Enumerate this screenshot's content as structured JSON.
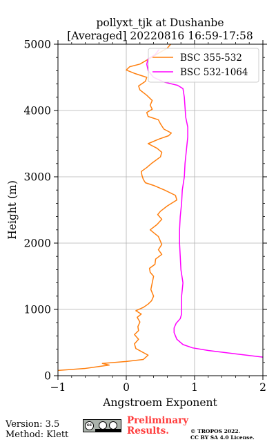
{
  "chart_data": {
    "type": "line",
    "title": [
      "pollyxt_tjk at Dushanbe",
      "[Averaged] 20220816 16:59-17:58"
    ],
    "xlabel": "Angstroem Exponent",
    "ylabel": "Height (m)",
    "xlim": [
      -1,
      2
    ],
    "ylim": [
      0,
      5000
    ],
    "xticks": [
      -1,
      0,
      1,
      2
    ],
    "xtick_labels": [
      "−1",
      "0",
      "1",
      "2"
    ],
    "yticks": [
      0,
      1000,
      2000,
      3000,
      4000,
      5000
    ],
    "ytick_labels": [
      "0",
      "1000",
      "2000",
      "3000",
      "4000",
      "5000"
    ],
    "grid": true,
    "legend_position": "top-right",
    "series": [
      {
        "name": "BSC 355-532",
        "color": "#ff7f0e",
        "points": [
          [
            -1.0,
            80
          ],
          [
            -0.6,
            110
          ],
          [
            -0.25,
            160
          ],
          [
            -0.35,
            185
          ],
          [
            0.0,
            215
          ],
          [
            0.25,
            245
          ],
          [
            0.32,
            310
          ],
          [
            0.22,
            365
          ],
          [
            0.14,
            410
          ],
          [
            0.12,
            480
          ],
          [
            0.18,
            550
          ],
          [
            0.12,
            620
          ],
          [
            0.18,
            680
          ],
          [
            0.17,
            740
          ],
          [
            0.2,
            810
          ],
          [
            0.16,
            880
          ],
          [
            0.22,
            930
          ],
          [
            0.14,
            980
          ],
          [
            0.25,
            1030
          ],
          [
            0.32,
            1080
          ],
          [
            0.37,
            1130
          ],
          [
            0.4,
            1200
          ],
          [
            0.36,
            1300
          ],
          [
            0.38,
            1400
          ],
          [
            0.4,
            1500
          ],
          [
            0.35,
            1560
          ],
          [
            0.34,
            1620
          ],
          [
            0.42,
            1680
          ],
          [
            0.43,
            1760
          ],
          [
            0.52,
            1830
          ],
          [
            0.47,
            1900
          ],
          [
            0.52,
            1980
          ],
          [
            0.47,
            2100
          ],
          [
            0.35,
            2200
          ],
          [
            0.45,
            2280
          ],
          [
            0.52,
            2360
          ],
          [
            0.46,
            2430
          ],
          [
            0.5,
            2480
          ],
          [
            0.6,
            2560
          ],
          [
            0.74,
            2650
          ],
          [
            0.72,
            2720
          ],
          [
            0.56,
            2800
          ],
          [
            0.4,
            2870
          ],
          [
            0.28,
            2910
          ],
          [
            0.25,
            2960
          ],
          [
            0.23,
            3020
          ],
          [
            0.22,
            3080
          ],
          [
            0.3,
            3140
          ],
          [
            0.38,
            3210
          ],
          [
            0.5,
            3300
          ],
          [
            0.52,
            3370
          ],
          [
            0.45,
            3430
          ],
          [
            0.32,
            3500
          ],
          [
            0.48,
            3570
          ],
          [
            0.62,
            3620
          ],
          [
            0.66,
            3660
          ],
          [
            0.55,
            3720
          ],
          [
            0.5,
            3800
          ],
          [
            0.47,
            3860
          ],
          [
            0.32,
            3910
          ],
          [
            0.3,
            3970
          ],
          [
            0.38,
            4020
          ],
          [
            0.35,
            4080
          ],
          [
            0.38,
            4150
          ],
          [
            0.3,
            4230
          ],
          [
            0.2,
            4310
          ],
          [
            0.18,
            4370
          ],
          [
            0.28,
            4440
          ],
          [
            0.3,
            4500
          ],
          [
            0.12,
            4560
          ],
          [
            0.0,
            4610
          ],
          [
            0.05,
            4660
          ],
          [
            0.2,
            4700
          ],
          [
            0.3,
            4760
          ],
          [
            0.4,
            4820
          ],
          [
            0.5,
            4880
          ],
          [
            0.6,
            4940
          ],
          [
            0.65,
            5000
          ]
        ]
      },
      {
        "name": "BSC 532-1064",
        "color": "#ff00ff",
        "points": [
          [
            2.0,
            280
          ],
          [
            1.6,
            330
          ],
          [
            1.2,
            380
          ],
          [
            0.97,
            420
          ],
          [
            0.83,
            470
          ],
          [
            0.74,
            550
          ],
          [
            0.7,
            650
          ],
          [
            0.7,
            720
          ],
          [
            0.73,
            790
          ],
          [
            0.79,
            860
          ],
          [
            0.81,
            930
          ],
          [
            0.81,
            1050
          ],
          [
            0.81,
            1200
          ],
          [
            0.83,
            1400
          ],
          [
            0.8,
            1600
          ],
          [
            0.79,
            1800
          ],
          [
            0.78,
            2000
          ],
          [
            0.78,
            2200
          ],
          [
            0.79,
            2400
          ],
          [
            0.81,
            2600
          ],
          [
            0.82,
            2800
          ],
          [
            0.85,
            3000
          ],
          [
            0.86,
            3200
          ],
          [
            0.88,
            3400
          ],
          [
            0.9,
            3600
          ],
          [
            0.9,
            3750
          ],
          [
            0.87,
            3900
          ],
          [
            0.86,
            4050
          ],
          [
            0.85,
            4200
          ],
          [
            0.83,
            4330
          ],
          [
            0.75,
            4380
          ],
          [
            0.55,
            4430
          ],
          [
            0.4,
            4500
          ],
          [
            0.32,
            4600
          ],
          [
            0.3,
            4700
          ],
          [
            0.32,
            4780
          ],
          [
            0.42,
            4840
          ],
          [
            0.48,
            4920
          ]
        ]
      }
    ]
  },
  "footer": {
    "version": "Version: 3.5",
    "method": "Method: Klett",
    "cc_badge_text": "cc",
    "preliminary_line1": "Preliminary",
    "preliminary_line2": "Results.",
    "copyright_line1": "© TROPOS 2022.",
    "copyright_line2": "CC BY SA 4.0 License."
  }
}
